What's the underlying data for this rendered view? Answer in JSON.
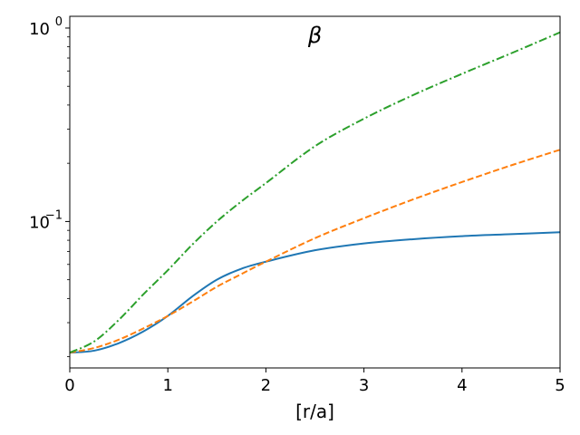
{
  "chart_data": {
    "type": "line",
    "title": "β",
    "xlabel": "[r/a]",
    "ylabel": "",
    "xlim": [
      0,
      5
    ],
    "ylim": [
      0.0175,
      1.15
    ],
    "yscale": "log",
    "grid": false,
    "x_ticks": [
      0,
      1,
      2,
      3,
      4,
      5
    ],
    "x_tick_labels": [
      "0",
      "1",
      "2",
      "3",
      "4",
      "5"
    ],
    "y_ticks": [
      0.1,
      1
    ],
    "y_tick_labels_base": [
      "10",
      "10"
    ],
    "y_tick_labels_exp": [
      "−1",
      "0"
    ],
    "x": [
      0,
      0.25,
      0.5,
      0.75,
      1.0,
      1.25,
      1.5,
      1.75,
      2.0,
      2.5,
      3.0,
      3.5,
      4.0,
      4.5,
      5.0
    ],
    "series": [
      {
        "color": "#1f77b4",
        "dash": "solid",
        "values": [
          0.021,
          0.0215,
          0.0235,
          0.027,
          0.0325,
          0.041,
          0.05,
          0.057,
          0.062,
          0.071,
          0.077,
          0.081,
          0.084,
          0.086,
          0.088
        ]
      },
      {
        "color": "#ff7f0e",
        "dash": "dashed",
        "values": [
          0.021,
          0.0222,
          0.0245,
          0.028,
          0.0325,
          0.0385,
          0.046,
          0.0535,
          0.062,
          0.082,
          0.104,
          0.13,
          0.16,
          0.195,
          0.235
        ]
      },
      {
        "color": "#2ca02c",
        "dash": "dashdot",
        "values": [
          0.021,
          0.024,
          0.031,
          0.042,
          0.056,
          0.076,
          0.1,
          0.127,
          0.158,
          0.245,
          0.34,
          0.45,
          0.58,
          0.74,
          0.95
        ]
      }
    ]
  }
}
